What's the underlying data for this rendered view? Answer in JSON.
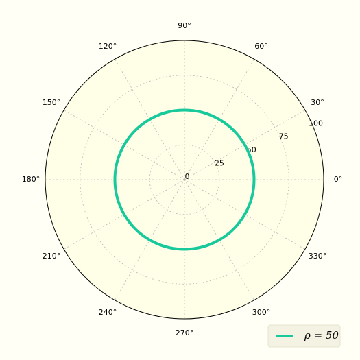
{
  "chart_data": {
    "type": "polar",
    "x": [
      0,
      30,
      60,
      90,
      120,
      150,
      180,
      210,
      240,
      270,
      300,
      330,
      360
    ],
    "series": [
      {
        "name": "ρ = 50",
        "color": "#17c99b",
        "values": [
          50,
          50,
          50,
          50,
          50,
          50,
          50,
          50,
          50,
          50,
          50,
          50,
          50
        ]
      }
    ],
    "xlim": [
      0,
      360
    ],
    "xticks": [
      {
        "value": 0,
        "label": "0°"
      },
      {
        "value": 30,
        "label": "30°"
      },
      {
        "value": 60,
        "label": "60°"
      },
      {
        "value": 90,
        "label": "90°"
      },
      {
        "value": 120,
        "label": "120°"
      },
      {
        "value": 150,
        "label": "150°"
      },
      {
        "value": 180,
        "label": "180°"
      },
      {
        "value": 210,
        "label": "210°"
      },
      {
        "value": 240,
        "label": "240°"
      },
      {
        "value": 270,
        "label": "270°"
      },
      {
        "value": 300,
        "label": "300°"
      },
      {
        "value": 330,
        "label": "330°"
      }
    ],
    "ylim": [
      0,
      100
    ],
    "yticks": [
      0,
      25,
      50,
      75,
      100
    ],
    "grid": true,
    "legend": "lower right"
  }
}
